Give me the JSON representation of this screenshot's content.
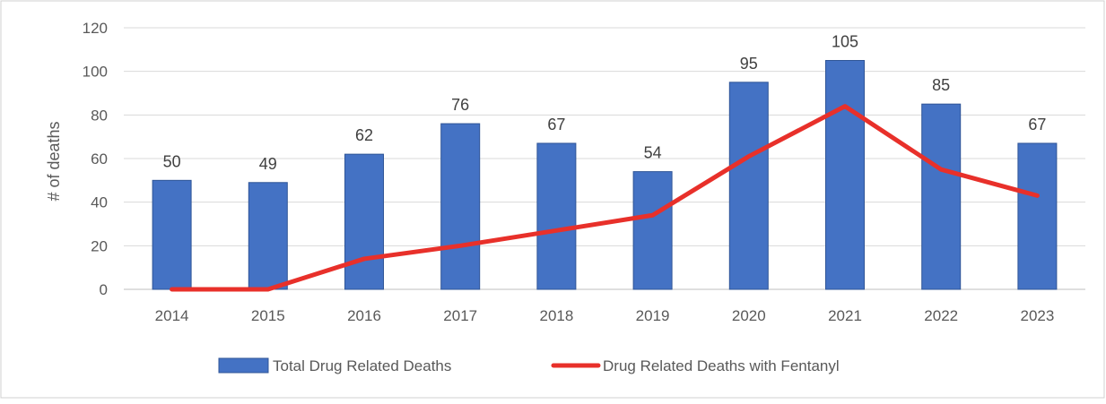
{
  "chart_data": {
    "type": "bar",
    "title": "",
    "xlabel": "",
    "ylabel": "# of deaths",
    "ylim": [
      0,
      120
    ],
    "yticks": [
      0,
      20,
      40,
      60,
      80,
      100,
      120
    ],
    "grid": true,
    "legend_position": "bottom",
    "categories": [
      "2014",
      "2015",
      "2016",
      "2017",
      "2018",
      "2019",
      "2020",
      "2021",
      "2022",
      "2023"
    ],
    "series": [
      {
        "name": "Total Drug Related Deaths",
        "type": "bar",
        "color": "#4472C4",
        "values": [
          50,
          49,
          62,
          76,
          67,
          54,
          95,
          105,
          85,
          67
        ],
        "data_labels": [
          "50",
          "49",
          "62",
          "76",
          "67",
          "54",
          "95",
          "105",
          "85",
          "67"
        ]
      },
      {
        "name": "Drug Related Deaths with Fentanyl",
        "type": "line",
        "color": "#E8302A",
        "values": [
          0,
          0,
          14,
          20,
          27,
          34,
          61,
          84,
          55,
          43
        ]
      }
    ]
  }
}
